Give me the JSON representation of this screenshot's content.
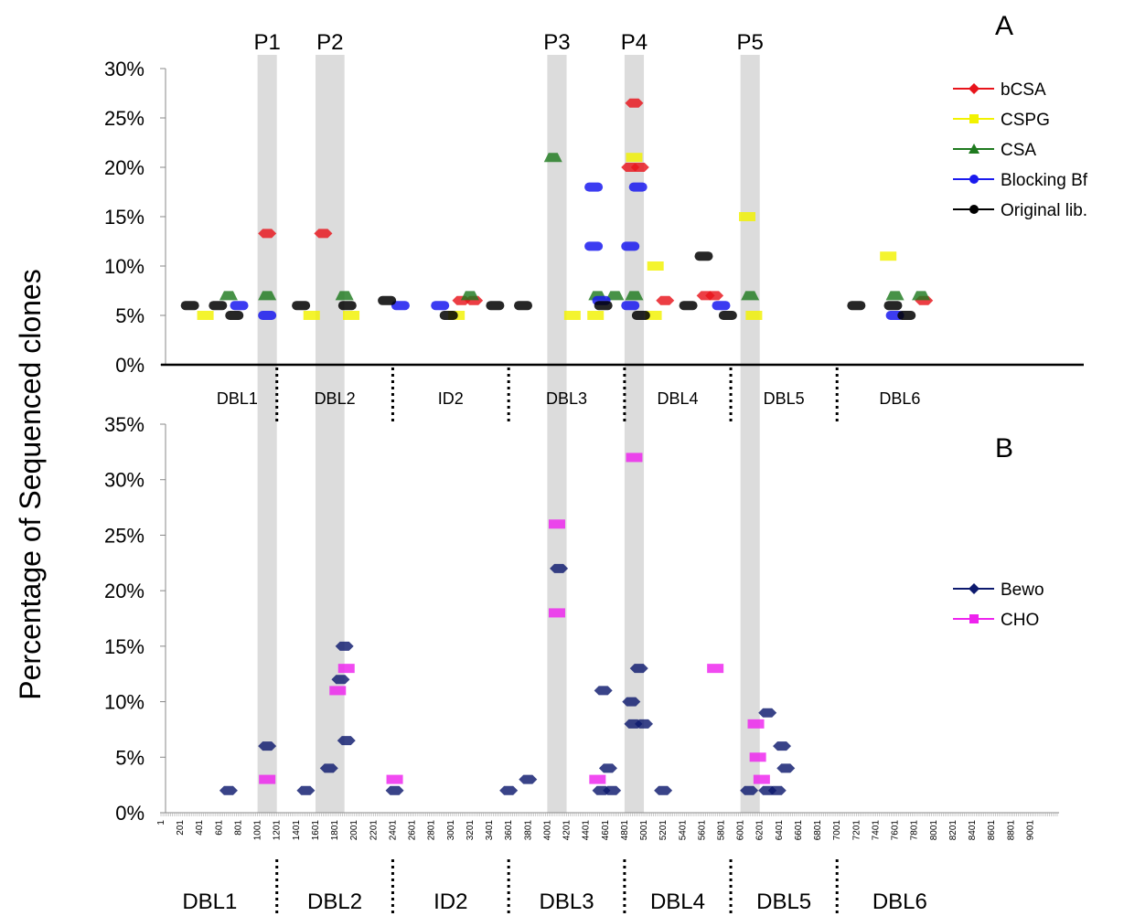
{
  "figure": {
    "ylabel": "Percentage of Sequenced clones",
    "panel_labels": [
      "A",
      "B"
    ],
    "peak_labels": [
      "P1",
      "P2",
      "P3",
      "P4",
      "P5"
    ],
    "domains": [
      "DBL1",
      "DBL2",
      "ID2",
      "DBL3",
      "DBL4",
      "DBL5",
      "DBL6"
    ],
    "x_tick_labels": [
      "1",
      "201",
      "401",
      "601",
      "801",
      "1001",
      "1201",
      "1401",
      "1601",
      "1801",
      "2001",
      "2201",
      "2401",
      "2601",
      "2801",
      "3001",
      "3201",
      "3401",
      "3601",
      "3801",
      "4001",
      "4201",
      "4401",
      "4601",
      "4801",
      "5001",
      "5201",
      "5401",
      "5601",
      "5801",
      "6001",
      "6201",
      "6401",
      "6601",
      "6801",
      "7001",
      "7201",
      "7401",
      "7601",
      "7801",
      "8001",
      "8201",
      "8401",
      "8601",
      "8801",
      "9001"
    ]
  },
  "colors": {
    "bCSA": "#e8141b",
    "CSPG": "#f2f200",
    "CSA": "#1f7a1f",
    "Blocking Bf": "#1a1aee",
    "Original lib.": "#000000",
    "Bewo": "#0d1a6e",
    "CHO": "#ee22ee",
    "shade": "#dcdcdc"
  },
  "chart_data": [
    {
      "type": "scatter",
      "panel": "A",
      "yticks": [
        "0%",
        "5%",
        "10%",
        "15%",
        "20%",
        "25%",
        "30%"
      ],
      "ylim": [
        0,
        30
      ],
      "xlim": [
        1,
        9300
      ],
      "legend_position": "right",
      "shaded_regions": [
        {
          "label": "P1",
          "x": [
            1001,
            1201
          ]
        },
        {
          "label": "P2",
          "x": [
            1601,
            1901
          ]
        },
        {
          "label": "P3",
          "x": [
            4001,
            4201
          ]
        },
        {
          "label": "P4",
          "x": [
            4801,
            5001
          ]
        },
        {
          "label": "P5",
          "x": [
            6001,
            6201
          ]
        }
      ],
      "domain_boundaries": [
        1201,
        2401,
        3601,
        4801,
        5901,
        7001
      ],
      "series": [
        {
          "name": "bCSA",
          "marker": "diamond",
          "points": [
            {
              "x": 1101,
              "y": 13.3
            },
            {
              "x": 1681,
              "y": 13.3
            },
            {
              "x": 3111,
              "y": 6.5
            },
            {
              "x": 3241,
              "y": 6.5
            },
            {
              "x": 4901,
              "y": 26.5
            },
            {
              "x": 4861,
              "y": 20
            },
            {
              "x": 4961,
              "y": 20
            },
            {
              "x": 5221,
              "y": 6.5
            },
            {
              "x": 5641,
              "y": 7
            },
            {
              "x": 5731,
              "y": 7
            },
            {
              "x": 7901,
              "y": 6.5
            }
          ]
        },
        {
          "name": "CSPG",
          "marker": "square",
          "points": [
            {
              "x": 461,
              "y": 5
            },
            {
              "x": 1561,
              "y": 5
            },
            {
              "x": 1971,
              "y": 5
            },
            {
              "x": 3061,
              "y": 5
            },
            {
              "x": 4261,
              "y": 5
            },
            {
              "x": 4501,
              "y": 5
            },
            {
              "x": 4901,
              "y": 21
            },
            {
              "x": 5121,
              "y": 10
            },
            {
              "x": 5101,
              "y": 5
            },
            {
              "x": 6071,
              "y": 15
            },
            {
              "x": 6141,
              "y": 5
            },
            {
              "x": 7531,
              "y": 11
            }
          ]
        },
        {
          "name": "CSA",
          "marker": "triangle",
          "points": [
            {
              "x": 701,
              "y": 7
            },
            {
              "x": 1101,
              "y": 7
            },
            {
              "x": 1901,
              "y": 7
            },
            {
              "x": 3201,
              "y": 7
            },
            {
              "x": 4061,
              "y": 21
            },
            {
              "x": 4521,
              "y": 7
            },
            {
              "x": 4701,
              "y": 7
            },
            {
              "x": 4901,
              "y": 7
            },
            {
              "x": 6101,
              "y": 7
            },
            {
              "x": 7601,
              "y": 7
            },
            {
              "x": 7871,
              "y": 7
            }
          ]
        },
        {
          "name": "Blocking Bf",
          "marker": "circle",
          "points": [
            {
              "x": 811,
              "y": 6
            },
            {
              "x": 1101,
              "y": 5
            },
            {
              "x": 2481,
              "y": 6
            },
            {
              "x": 2891,
              "y": 6
            },
            {
              "x": 4481,
              "y": 18
            },
            {
              "x": 4481,
              "y": 12
            },
            {
              "x": 4561,
              "y": 6.5
            },
            {
              "x": 4861,
              "y": 12
            },
            {
              "x": 4941,
              "y": 18
            },
            {
              "x": 4861,
              "y": 6
            },
            {
              "x": 5801,
              "y": 6
            },
            {
              "x": 7601,
              "y": 5
            }
          ]
        },
        {
          "name": "Original lib.",
          "marker": "circle",
          "points": [
            {
              "x": 301,
              "y": 6
            },
            {
              "x": 591,
              "y": 6
            },
            {
              "x": 761,
              "y": 5
            },
            {
              "x": 1451,
              "y": 6
            },
            {
              "x": 1931,
              "y": 6
            },
            {
              "x": 2341,
              "y": 6.5
            },
            {
              "x": 2981,
              "y": 5
            },
            {
              "x": 3461,
              "y": 6
            },
            {
              "x": 3751,
              "y": 6
            },
            {
              "x": 4581,
              "y": 6
            },
            {
              "x": 4971,
              "y": 5
            },
            {
              "x": 5461,
              "y": 6
            },
            {
              "x": 5621,
              "y": 11
            },
            {
              "x": 5871,
              "y": 5
            },
            {
              "x": 7201,
              "y": 6
            },
            {
              "x": 7581,
              "y": 6
            },
            {
              "x": 7721,
              "y": 5
            }
          ]
        }
      ]
    },
    {
      "type": "scatter",
      "panel": "B",
      "yticks": [
        "0%",
        "5%",
        "10%",
        "15%",
        "20%",
        "25%",
        "30%",
        "35%"
      ],
      "ylim": [
        0,
        35
      ],
      "xlim": [
        1,
        9300
      ],
      "legend_position": "right",
      "shaded_regions": [
        {
          "label": "P1",
          "x": [
            1001,
            1201
          ]
        },
        {
          "label": "P2",
          "x": [
            1601,
            1901
          ]
        },
        {
          "label": "P3",
          "x": [
            4001,
            4201
          ]
        },
        {
          "label": "P4",
          "x": [
            4801,
            5001
          ]
        },
        {
          "label": "P5",
          "x": [
            6001,
            6201
          ]
        }
      ],
      "domain_boundaries": [
        1201,
        2401,
        3601,
        4801,
        5901,
        7001
      ],
      "series": [
        {
          "name": "Bewo",
          "marker": "diamond",
          "points": [
            {
              "x": 701,
              "y": 2
            },
            {
              "x": 1101,
              "y": 6
            },
            {
              "x": 1501,
              "y": 2
            },
            {
              "x": 1741,
              "y": 4
            },
            {
              "x": 1861,
              "y": 12
            },
            {
              "x": 1901,
              "y": 15
            },
            {
              "x": 1921,
              "y": 6.5
            },
            {
              "x": 2421,
              "y": 2
            },
            {
              "x": 3601,
              "y": 2
            },
            {
              "x": 3801,
              "y": 3
            },
            {
              "x": 4121,
              "y": 22
            },
            {
              "x": 4581,
              "y": 11
            },
            {
              "x": 4561,
              "y": 2
            },
            {
              "x": 4631,
              "y": 4
            },
            {
              "x": 4671,
              "y": 2
            },
            {
              "x": 4871,
              "y": 10
            },
            {
              "x": 4951,
              "y": 13
            },
            {
              "x": 4891,
              "y": 8
            },
            {
              "x": 5001,
              "y": 8
            },
            {
              "x": 5201,
              "y": 2
            },
            {
              "x": 6281,
              "y": 9
            },
            {
              "x": 6091,
              "y": 2
            },
            {
              "x": 6281,
              "y": 2
            },
            {
              "x": 6431,
              "y": 6
            },
            {
              "x": 6471,
              "y": 4
            },
            {
              "x": 6381,
              "y": 2
            }
          ]
        },
        {
          "name": "CHO",
          "marker": "square",
          "points": [
            {
              "x": 1101,
              "y": 3
            },
            {
              "x": 1831,
              "y": 11
            },
            {
              "x": 1921,
              "y": 13
            },
            {
              "x": 2421,
              "y": 3
            },
            {
              "x": 4101,
              "y": 26
            },
            {
              "x": 4101,
              "y": 18
            },
            {
              "x": 4521,
              "y": 3
            },
            {
              "x": 4901,
              "y": 32
            },
            {
              "x": 5741,
              "y": 13
            },
            {
              "x": 6161,
              "y": 8
            },
            {
              "x": 6181,
              "y": 5
            },
            {
              "x": 6221,
              "y": 3
            }
          ]
        }
      ]
    }
  ]
}
